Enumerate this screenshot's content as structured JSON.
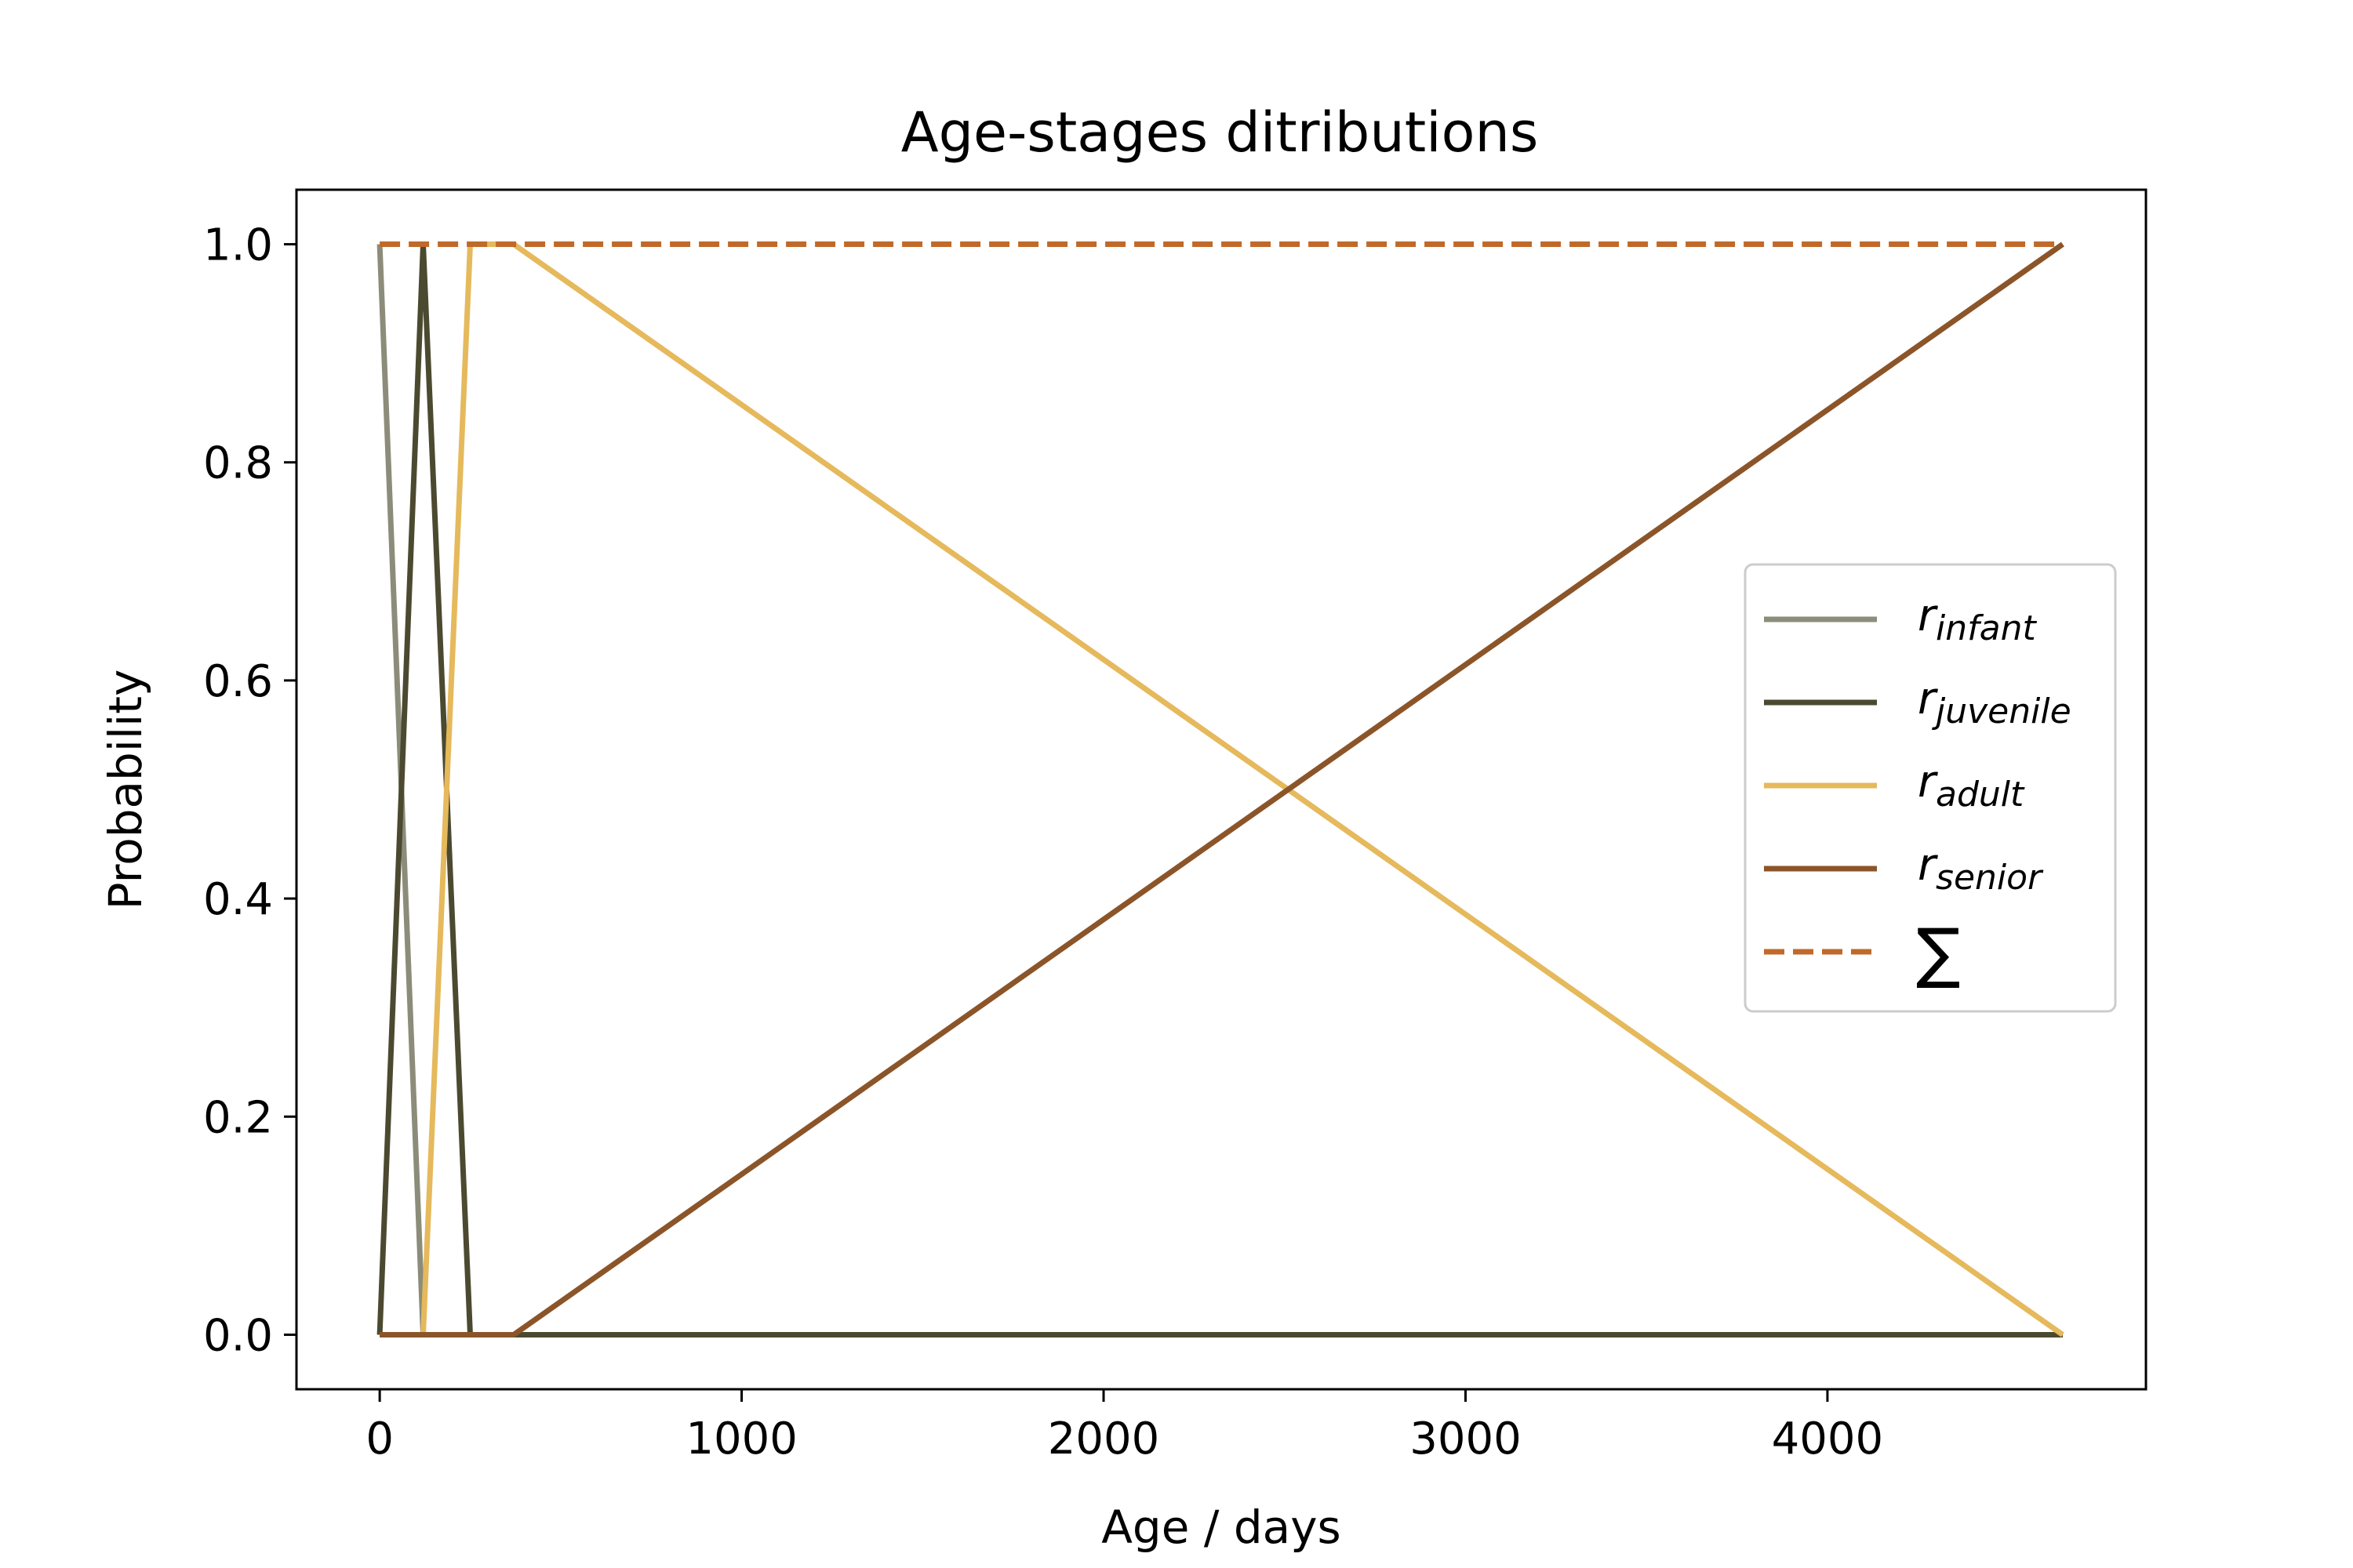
{
  "chart_data": {
    "type": "line",
    "title": "Age-stages ditributions",
    "xlabel": "Age / days",
    "ylabel": "Probability",
    "xlim": [
      -230,
      4880
    ],
    "ylim": [
      -0.05,
      1.05
    ],
    "xticks": [
      0,
      1000,
      2000,
      3000,
      4000
    ],
    "xtick_labels": [
      "0",
      "1000",
      "2000",
      "3000",
      "4000"
    ],
    "yticks": [
      0.0,
      0.2,
      0.4,
      0.6,
      0.8,
      1.0
    ],
    "ytick_labels": [
      "0.0",
      "0.2",
      "0.4",
      "0.6",
      "0.8",
      "1.0"
    ],
    "grid": false,
    "legend_position": "center-right",
    "series": [
      {
        "name": "r_infant",
        "legend_main": "r",
        "legend_sub": "infant",
        "color": "#8c8c7a",
        "dashed": false,
        "x": [
          0,
          120,
          4650
        ],
        "y": [
          1.0,
          0.0,
          0.0
        ]
      },
      {
        "name": "r_juvenile",
        "legend_main": "r",
        "legend_sub": "juvenile",
        "color": "#4b4a30",
        "dashed": false,
        "x": [
          0,
          120,
          250,
          4650
        ],
        "y": [
          0.0,
          1.0,
          0.0,
          0.0
        ]
      },
      {
        "name": "r_adult",
        "legend_main": "r",
        "legend_sub": "adult",
        "color": "#e5b95c",
        "dashed": false,
        "x": [
          0,
          120,
          250,
          370,
          4650
        ],
        "y": [
          0.0,
          0.0,
          1.0,
          1.0,
          0.0
        ]
      },
      {
        "name": "r_senior",
        "legend_main": "r",
        "legend_sub": "senior",
        "color": "#8b5529",
        "dashed": false,
        "x": [
          0,
          370,
          4650
        ],
        "y": [
          0.0,
          0.0,
          1.0
        ]
      },
      {
        "name": "Σ",
        "legend_main": "∑",
        "legend_sub": "",
        "color": "#c0692a",
        "dashed": true,
        "x": [
          0,
          4650
        ],
        "y": [
          1.0,
          1.0
        ]
      }
    ]
  }
}
